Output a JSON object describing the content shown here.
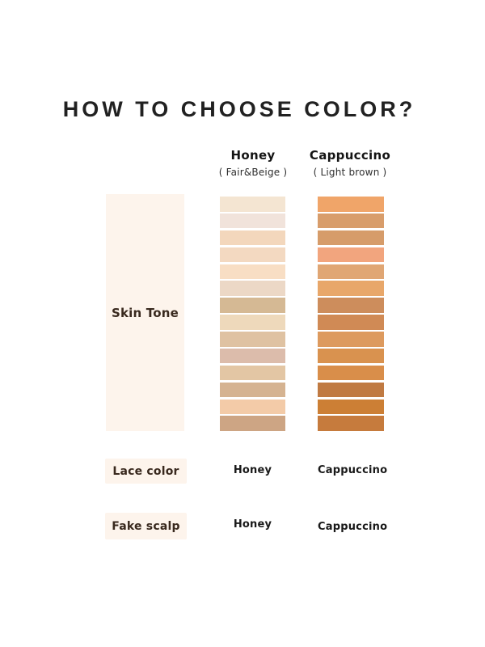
{
  "title": "HOW TO CHOOSE COLOR?",
  "chart_data": {
    "type": "table",
    "title": "HOW TO CHOOSE COLOR?",
    "columns": [
      {
        "name": "Honey",
        "subtitle": "( Fair&Beige )",
        "swatches": [
          "#f4e5d2",
          "#f1e3db",
          "#f3d7bc",
          "#f3d9c1",
          "#f8dec4",
          "#ecd8c6",
          "#d5b994",
          "#eed9bb",
          "#dfc2a2",
          "#dcbcab",
          "#e3c6a4",
          "#d5b391",
          "#f3cba8",
          "#cda584"
        ]
      },
      {
        "name": "Cappuccino",
        "subtitle": "( Light brown )",
        "swatches": [
          "#f0a569",
          "#d89d6b",
          "#d69c6a",
          "#f2a57e",
          "#e0a674",
          "#e8a76a",
          "#cd8d5c",
          "#d08a55",
          "#dd9a5e",
          "#d9924f",
          "#d98e4a",
          "#c07a42",
          "#cc7f35",
          "#c67b3d"
        ]
      }
    ],
    "row_labels": [
      "Skin Tone",
      "Lace color",
      "Fake scalp"
    ],
    "lace_color_values": [
      "Honey",
      "Cappuccino"
    ],
    "fake_scalp_values": [
      "Honey",
      "Cappuccino"
    ]
  },
  "colors": {
    "page_bg": "#ffffff",
    "panel_bg": "#fdf4ec",
    "title_text": "#212121",
    "label_text": "#39291e"
  }
}
